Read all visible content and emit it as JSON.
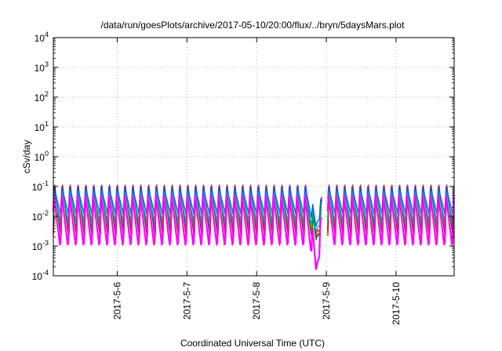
{
  "chart_data": {
    "type": "line",
    "title": "/data/run/goesPlots/archive/2017-05-10/20:00/flux/../bryn/5daysMars.plot",
    "xlabel": "Coordinated Universal Time (UTC)",
    "ylabel": "cSv/day",
    "yscale": "log",
    "ylim": [
      0.0001,
      10000
    ],
    "xlim": [
      "2017-05-05T02:00",
      "2017-05-10T20:00"
    ],
    "y_ticks": [
      {
        "value": 0.0001,
        "base": "10",
        "exp": "-4"
      },
      {
        "value": 0.001,
        "base": "10",
        "exp": "-3"
      },
      {
        "value": 0.01,
        "base": "10",
        "exp": "-2"
      },
      {
        "value": 0.1,
        "base": "10",
        "exp": "-1"
      },
      {
        "value": 1,
        "base": "10",
        "exp": "0"
      },
      {
        "value": 10,
        "base": "10",
        "exp": "1"
      },
      {
        "value": 100,
        "base": "10",
        "exp": "2"
      },
      {
        "value": 1000,
        "base": "10",
        "exp": "3"
      },
      {
        "value": 10000,
        "base": "10",
        "exp": "4"
      }
    ],
    "x_ticks": [
      {
        "value": "2017-05-06T00:00",
        "label": "2017-5-6"
      },
      {
        "value": "2017-05-07T00:00",
        "label": "2017-5-7"
      },
      {
        "value": "2017-05-08T00:00",
        "label": "2017-5-8"
      },
      {
        "value": "2017-05-09T00:00",
        "label": "2017-5-9"
      },
      {
        "value": "2017-05-10T00:00",
        "label": "2017-5-10"
      }
    ],
    "grid": true,
    "legend": "none",
    "orbit_period_hours": 2.7,
    "series": [
      {
        "color": "#ff0000",
        "peak": 0.12,
        "trough": 0.0022,
        "dip_min": 0.0025
      },
      {
        "color": "#8b0000",
        "peak": 0.11,
        "trough": 0.0018,
        "dip_min": 0.0018
      },
      {
        "color": "#00a000",
        "peak": 0.09,
        "trough": 0.003,
        "dip_min": 0.0015
      },
      {
        "color": "#00b0b0",
        "peak": 0.08,
        "trough": 0.006,
        "dip_min": 0.003
      },
      {
        "color": "#0060ff",
        "peak": 0.1,
        "trough": 0.012,
        "dip_min": 0.0045
      },
      {
        "color": "#ff00ff",
        "peak": 0.06,
        "trough": 0.0008,
        "dip_min": 0.00015
      }
    ]
  }
}
